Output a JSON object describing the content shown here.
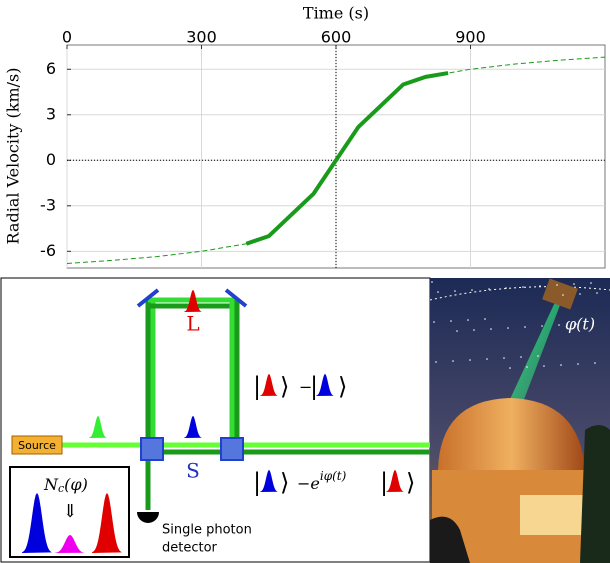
{
  "chart_data": {
    "type": "line",
    "xlabel": "Time (s)",
    "ylabel": "Radial Velocity (km/s)",
    "x": [
      0,
      100,
      200,
      300,
      400,
      450,
      500,
      550,
      600,
      650,
      700,
      750,
      800,
      850,
      900,
      1000,
      1100,
      1200
    ],
    "series": [
      {
        "color": "#1a9a1a",
        "style": "dashed",
        "values": [
          -6.8,
          -6.6,
          -6.35,
          -6.0,
          -5.5,
          -5.0,
          -3.6,
          -2.2,
          0,
          2.2,
          3.6,
          5.0,
          5.5,
          5.75,
          6.0,
          6.35,
          6.6,
          6.8
        ]
      },
      {
        "color": "#1a9a1a",
        "style": "solid",
        "values": [
          null,
          null,
          null,
          null,
          -5.5,
          -5.0,
          -3.6,
          -2.2,
          0,
          2.2,
          3.6,
          5.0,
          5.5,
          5.75,
          null,
          null,
          null,
          null
        ]
      }
    ],
    "xlim": [
      0,
      1200
    ],
    "ylim": [
      -7.1,
      7.6
    ],
    "xticks": [
      0,
      300,
      600,
      900
    ],
    "yticks": [
      6,
      3,
      0,
      -3,
      -6
    ],
    "grid": true
  },
  "diagram": {
    "source": "Source",
    "long_arm": "L",
    "short_arm": "S",
    "detector": [
      "Single photon",
      "detector"
    ],
    "counts_label": "N",
    "counts_sub": "c",
    "counts_arg": "(φ)",
    "phase_label": "φ(t)",
    "state_minus": "−",
    "state_phase": "−e",
    "state_phase_exp": "iφ(t)"
  }
}
